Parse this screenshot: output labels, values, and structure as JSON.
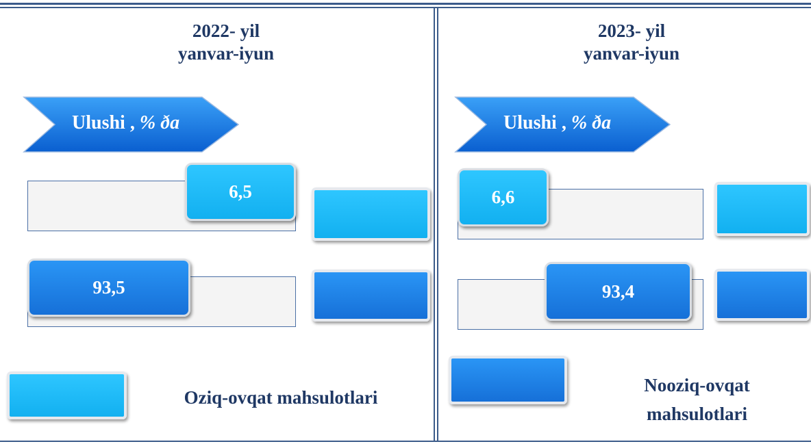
{
  "panels": [
    {
      "title": [
        "2022- yil",
        "yanvar-iyun"
      ],
      "tag": {
        "main": "Ulushi ,",
        "unit": "% ða"
      },
      "rows": [
        "6,5",
        "93,5"
      ]
    },
    {
      "title": [
        "2023- yil",
        "yanvar-iyun"
      ],
      "tag": {
        "main": "Ulushi ,",
        "unit": "% ða"
      },
      "rows": [
        "6,6",
        "93,4"
      ]
    }
  ],
  "legend": [
    "Oziq-ovqat mahsulotlari",
    "Nooziq-ovqat mahsulotlari"
  ]
}
